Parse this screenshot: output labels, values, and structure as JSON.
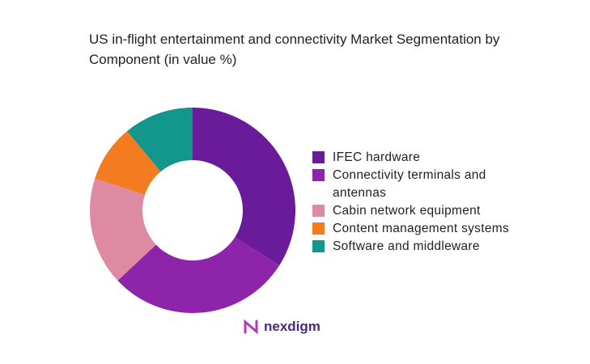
{
  "chart_data": {
    "type": "donut",
    "title": "US in-flight entertainment and connectivity Market Segmentation by Component (in value %)",
    "categories": [
      "IFEC hardware",
      "Connectivity terminals and antennas",
      "Cabin network equipment",
      "Content management systems",
      "Software and middleware"
    ],
    "values": [
      34,
      29,
      17,
      9,
      11
    ],
    "colors": [
      "#6a1b9a",
      "#8e24aa",
      "#df8aa3",
      "#f47c20",
      "#13968b"
    ],
    "legend": "right"
  },
  "logo": "nexdigm"
}
